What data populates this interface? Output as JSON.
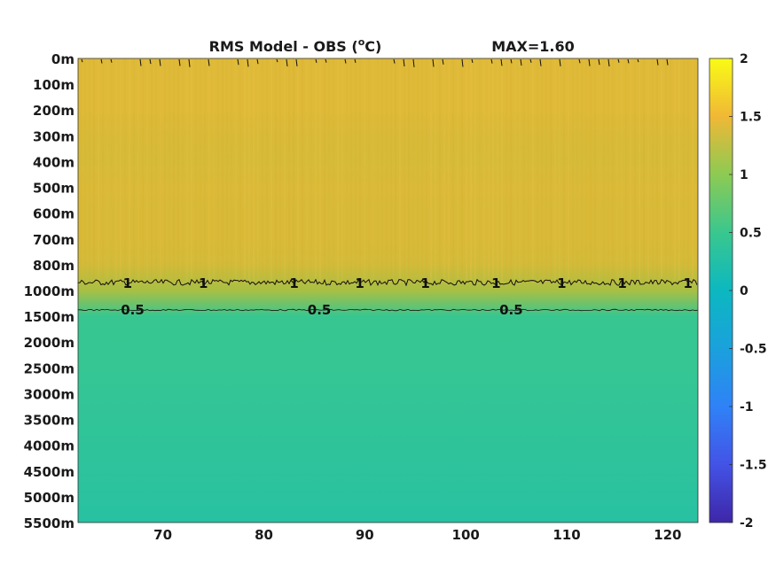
{
  "title": {
    "main": "RMS Model - OBS (",
    "superscript": "o",
    "unit": "C)",
    "max_text": "MAX=1.60"
  },
  "chart_data": {
    "type": "heatmap",
    "title": "RMS Model - OBS (oC)",
    "max_value": 1.6,
    "x_ticks": [
      "70",
      "80",
      "90",
      "100",
      "110",
      "120"
    ],
    "x_tick_values": [
      70,
      80,
      90,
      100,
      110,
      120
    ],
    "x_range": [
      61.6,
      123
    ],
    "y_ticks": [
      "0m",
      "100m",
      "200m",
      "300m",
      "400m",
      "500m",
      "600m",
      "700m",
      "800m",
      "1000m",
      "1500m",
      "2000m",
      "2500m",
      "3000m",
      "3500m",
      "4000m",
      "4500m",
      "5000m",
      "5500m"
    ],
    "colorbar": {
      "ticks": [
        "2",
        "1.5",
        "1",
        "0.5",
        "0",
        "-0.5",
        "-1",
        "-1.5",
        "-2"
      ],
      "tick_values": [
        2,
        1.5,
        1,
        0.5,
        0,
        -0.5,
        -1,
        -1.5,
        -2
      ],
      "range": [
        -2,
        2
      ],
      "colormap": "parula"
    },
    "depth_profile": [
      {
        "depth": "0m",
        "value": 1.35
      },
      {
        "depth": "100m",
        "value": 1.35
      },
      {
        "depth": "200m",
        "value": 1.35
      },
      {
        "depth": "300m",
        "value": 1.3
      },
      {
        "depth": "400m",
        "value": 1.28
      },
      {
        "depth": "500m",
        "value": 1.32
      },
      {
        "depth": "600m",
        "value": 1.3
      },
      {
        "depth": "700m",
        "value": 1.3
      },
      {
        "depth": "800m",
        "value": 1.25
      },
      {
        "depth": "1000m",
        "value": 0.95
      },
      {
        "depth": "1500m",
        "value": 0.48
      },
      {
        "depth": "2000m",
        "value": 0.45
      },
      {
        "depth": "2500m",
        "value": 0.45
      },
      {
        "depth": "3000m",
        "value": 0.42
      },
      {
        "depth": "3500m",
        "value": 0.4
      },
      {
        "depth": "4000m",
        "value": 0.38
      },
      {
        "depth": "4500m",
        "value": 0.36
      },
      {
        "depth": "5000m",
        "value": 0.33
      },
      {
        "depth": "5500m",
        "value": 0.3
      }
    ],
    "contours": [
      {
        "level": "1",
        "label": "1",
        "depth_position": "between 800m and 1000m",
        "label_x": [
          66.5,
          74,
          83,
          89.5,
          96,
          103,
          109.5,
          115.5,
          122
        ]
      },
      {
        "level": "0.5",
        "label": "0.5",
        "depth_position": "between 1000m and 1500m",
        "label_x": [
          67,
          85.5,
          104.5
        ]
      }
    ]
  }
}
